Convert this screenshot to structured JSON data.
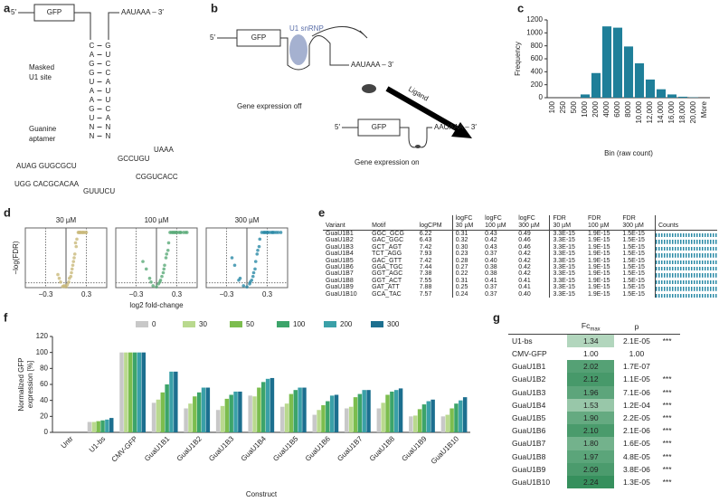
{
  "panel_labels": [
    "a",
    "b",
    "c",
    "d",
    "e",
    "f",
    "g"
  ],
  "panel_a": {
    "five": "5′",
    "gfp": "GFP",
    "polya": "AAUAAA – 3′",
    "masked": [
      "Masked",
      "U1 site"
    ],
    "aptamer": [
      "Guanine",
      "aptamer"
    ],
    "stem_left": "CAGGUAAGUNN",
    "stem_right": "GUCCAUUCANN",
    "loop": [
      "AUAG GUGCGCU",
      "UGG CACGCACAA",
      "GUUUCU",
      "GCCUGU",
      "CGGUCACC",
      "UAAA"
    ]
  },
  "panel_b": {
    "five_off": "5′",
    "gfp_off": "GFP",
    "u1": "U1 snRNP",
    "polya_off": "AAUAAA – 3′",
    "off": "Gene expression off",
    "ligand": "Ligand",
    "five_on": "5′",
    "gfp_on": "GFP",
    "polya_on": "AAUAAA – 3′",
    "on": "Gene expression on"
  },
  "chart_data": [
    {
      "type": "bar",
      "xlabel": "Bin (raw count)",
      "ylabel": "Frequency",
      "categories": [
        "100",
        "250",
        "500",
        "1000",
        "2000",
        "4000",
        "6000",
        "8000",
        "10,000",
        "12,000",
        "14,000",
        "16,000",
        "18,000",
        "20,000",
        "More"
      ],
      "values": [
        0,
        0,
        0,
        50,
        380,
        1100,
        1080,
        790,
        530,
        280,
        130,
        50,
        15,
        5,
        0
      ],
      "color": "#1f7f99",
      "ylim": [
        0,
        1200
      ],
      "yticks": [
        0,
        200,
        400,
        600,
        800,
        1000,
        1200
      ]
    },
    {
      "type": "scatter",
      "title": "30 µM",
      "ylabel": "−log(FDR)",
      "color": "#c9b97a",
      "x": [
        -0.05,
        -0.03,
        0.0,
        0.02,
        -0.08,
        0.05,
        0.08,
        -0.1,
        0.1,
        0.12,
        -0.12,
        0.15,
        0.18,
        0.2,
        0.22,
        0.25,
        0.28,
        0.3,
        0.14,
        0.16,
        0.19,
        0.21,
        0.24,
        0.26,
        0.09,
        0.04,
        -0.02,
        0.07,
        0.11,
        0.13
      ],
      "y": [
        0.3,
        0.5,
        0.2,
        0.8,
        1.5,
        2.5,
        4,
        2.5,
        6,
        8,
        3.5,
        11,
        14.8,
        14.8,
        14.8,
        14.8,
        14.8,
        14.8,
        12,
        13,
        14.8,
        14.8,
        14.8,
        14.8,
        5,
        1.5,
        0.4,
        3,
        7,
        9
      ],
      "xlim": [
        -0.6,
        0.6
      ],
      "ylim": [
        0,
        16
      ],
      "xticks": [
        {
          "value": -0.3,
          "label": "−0.3"
        },
        0.3
      ],
      "hline": 1.3
    },
    {
      "type": "scatter",
      "title": "100 µM",
      "xlabel": "log2 fold-change",
      "color": "#5aaa78",
      "x": [
        -0.05,
        0,
        0.03,
        -0.1,
        -0.15,
        0.06,
        0.1,
        0.12,
        0.15,
        0.18,
        0.2,
        0.22,
        0.25,
        0.28,
        0.3,
        0.33,
        0.36,
        0.4,
        0.43,
        0.45,
        -0.2,
        0.08,
        0.14,
        0.17,
        0.24,
        0.27,
        0.35,
        0.05,
        -0.08,
        0.11
      ],
      "y": [
        0.5,
        0.2,
        1,
        2.5,
        5,
        2,
        4,
        6,
        9,
        12,
        14.8,
        14.8,
        14.8,
        14.8,
        14.8,
        14.8,
        14.8,
        14.8,
        14.8,
        14.8,
        7,
        3,
        8,
        10,
        14.8,
        14.8,
        14.8,
        1.5,
        1.5,
        5
      ],
      "xlim": [
        -0.6,
        0.6
      ],
      "ylim": [
        0,
        16
      ],
      "xticks": [
        {
          "value": -0.3,
          "label": "−0.3"
        },
        0.3
      ],
      "hline": 1.3
    },
    {
      "type": "scatter",
      "title": "300 µM",
      "color": "#2a8aa6",
      "x": [
        -0.05,
        0,
        0.04,
        -0.1,
        -0.18,
        0.07,
        0.1,
        0.13,
        0.16,
        0.19,
        0.22,
        0.25,
        0.28,
        0.31,
        0.34,
        0.37,
        0.4,
        0.43,
        0.46,
        0.5,
        -0.22,
        0.09,
        0.15,
        0.18,
        0.26,
        0.3,
        0.38,
        0.05,
        -0.12,
        0.12
      ],
      "y": [
        0.5,
        0.2,
        1,
        2.5,
        6,
        2,
        4,
        7,
        10,
        13,
        14.8,
        14.8,
        14.8,
        14.8,
        14.8,
        14.8,
        14.8,
        14.8,
        14.8,
        14.8,
        8,
        3,
        9,
        11,
        14.8,
        14.8,
        14.8,
        1.5,
        2,
        5
      ],
      "xlim": [
        -0.6,
        0.6
      ],
      "ylim": [
        0,
        16
      ],
      "xticks": [
        {
          "value": -0.3,
          "label": "−0.3"
        },
        0.3
      ],
      "hline": 1.3
    },
    {
      "type": "grouped_bar",
      "xlabel": "Construct",
      "ylabel": [
        "Normalized GFP",
        "expression [%]"
      ],
      "categories": [
        "Untr",
        "U1-bs",
        "CMV-GFP",
        "GuaU1B1",
        "GuaU1B2",
        "GuaU1B3",
        "GuaU1B4",
        "GuaU1B5",
        "GuaU1B6",
        "GuaU1B7",
        "GuaU1B8",
        "GuaU1B9",
        "GuaU1B10"
      ],
      "series": [
        {
          "name": "0",
          "color": "#c8c8c8",
          "values": [
            0,
            13,
            100,
            37,
            30,
            28,
            46,
            32,
            22,
            30,
            30,
            20,
            20
          ]
        },
        {
          "name": "30",
          "color": "#b9d98e",
          "values": [
            0,
            13,
            100,
            41,
            36,
            33,
            45,
            36,
            28,
            32,
            37,
            21,
            22
          ]
        },
        {
          "name": "50",
          "color": "#7cbd4e",
          "values": [
            0,
            14,
            100,
            50,
            45,
            42,
            56,
            48,
            34,
            44,
            47,
            29,
            30
          ]
        },
        {
          "name": "100",
          "color": "#3ca46a",
          "values": [
            0,
            15,
            100,
            60,
            50,
            47,
            63,
            53,
            39,
            48,
            51,
            35,
            36
          ]
        },
        {
          "name": "200",
          "color": "#3aa0a8",
          "values": [
            0,
            16,
            100,
            76,
            56,
            51,
            67,
            56,
            46,
            53,
            53,
            39,
            40
          ]
        },
        {
          "name": "300",
          "color": "#1c6f8f",
          "values": [
            0,
            18,
            100,
            76,
            56,
            51,
            68,
            56,
            47,
            53,
            55,
            41,
            44
          ]
        }
      ],
      "ylim": [
        0,
        120
      ],
      "yticks": [
        0,
        20,
        40,
        60,
        80,
        100,
        120
      ]
    }
  ],
  "table_e": {
    "header": [
      [
        "Variant"
      ],
      [
        "Motif"
      ],
      [
        "logCPM"
      ],
      [
        "logFC",
        "30 µM"
      ],
      [
        "logFC",
        "100 µM"
      ],
      [
        "logFC",
        "300 µM"
      ],
      [
        "FDR",
        "30 µM"
      ],
      [
        "FDR",
        "100 µM"
      ],
      [
        "FDR",
        "300 µM"
      ],
      [
        "Counts"
      ]
    ],
    "rows": [
      [
        "GuaU1B1",
        "GGC_GCG",
        "6.22",
        "0.31",
        "0.43",
        "0.49",
        "3.3E-15",
        "1.9E-15",
        "1.5E-15"
      ],
      [
        "GuaU1B2",
        "GAC_GGC",
        "6.43",
        "0.32",
        "0.42",
        "0.46",
        "3.3E-15",
        "1.9E-15",
        "1.5E-15"
      ],
      [
        "GuaU1B3",
        "GCT_AGT",
        "7.42",
        "0.30",
        "0.43",
        "0.46",
        "3.3E-15",
        "1.9E-15",
        "1.5E-15"
      ],
      [
        "GuaU1B4",
        "TCT_AGG",
        "7.93",
        "0.23",
        "0.37",
        "0.42",
        "3.3E-15",
        "1.9E-15",
        "1.5E-15"
      ],
      [
        "GuaU1B5",
        "GAC_GTT",
        "7.42",
        "0.28",
        "0.40",
        "0.42",
        "3.3E-15",
        "1.9E-15",
        "1.5E-15"
      ],
      [
        "GuaU1B6",
        "GGA_TGC",
        "7.44",
        "0.27",
        "0.38",
        "0.42",
        "3.3E-15",
        "1.9E-15",
        "1.5E-15"
      ],
      [
        "GuaU1B7",
        "GGT_AGC",
        "7.38",
        "0.22",
        "0.38",
        "0.42",
        "3.3E-15",
        "1.9E-15",
        "1.5E-15"
      ],
      [
        "GuaU1B8",
        "GGT_ACT",
        "7.55",
        "0.31",
        "0.41",
        "0.41",
        "3.3E-15",
        "1.9E-15",
        "1.5E-15"
      ],
      [
        "GuaU1B9",
        "GAT_ATT",
        "7.88",
        "0.25",
        "0.37",
        "0.41",
        "3.3E-15",
        "1.9E-15",
        "1.5E-15"
      ],
      [
        "GuaU1B10",
        "GCA_TAC",
        "7.57",
        "0.24",
        "0.37",
        "0.40",
        "3.3E-15",
        "1.9E-15",
        "1.5E-15"
      ]
    ]
  },
  "table_g": {
    "header": {
      "fc": "Fc",
      "fc_sub": "max",
      "p": "p"
    },
    "rows": [
      [
        "U1-bs",
        "1.34",
        "2.1E-05",
        "***"
      ],
      [
        "CMV-GFP",
        "1.00",
        "1.00",
        ""
      ],
      [
        "GuaU1B1",
        "2.02",
        "1.7E-07",
        ""
      ],
      [
        "GuaU1B2",
        "2.12",
        "1.1E-05",
        "***"
      ],
      [
        "GuaU1B3",
        "1.96",
        "7.1E-06",
        "***"
      ],
      [
        "GuaU1B4",
        "1.53",
        "1.2E-04",
        "***"
      ],
      [
        "GuaU1B5",
        "1.90",
        "2.2E-05",
        "***"
      ],
      [
        "GuaU1B6",
        "2.10",
        "2.1E-06",
        "***"
      ],
      [
        "GuaU1B7",
        "1.80",
        "1.6E-05",
        "***"
      ],
      [
        "GuaU1B8",
        "1.97",
        "4.8E-05",
        "***"
      ],
      [
        "GuaU1B9",
        "2.09",
        "3.8E-06",
        "***"
      ],
      [
        "GuaU1B10",
        "2.24",
        "1.3E-05",
        "***"
      ]
    ]
  }
}
